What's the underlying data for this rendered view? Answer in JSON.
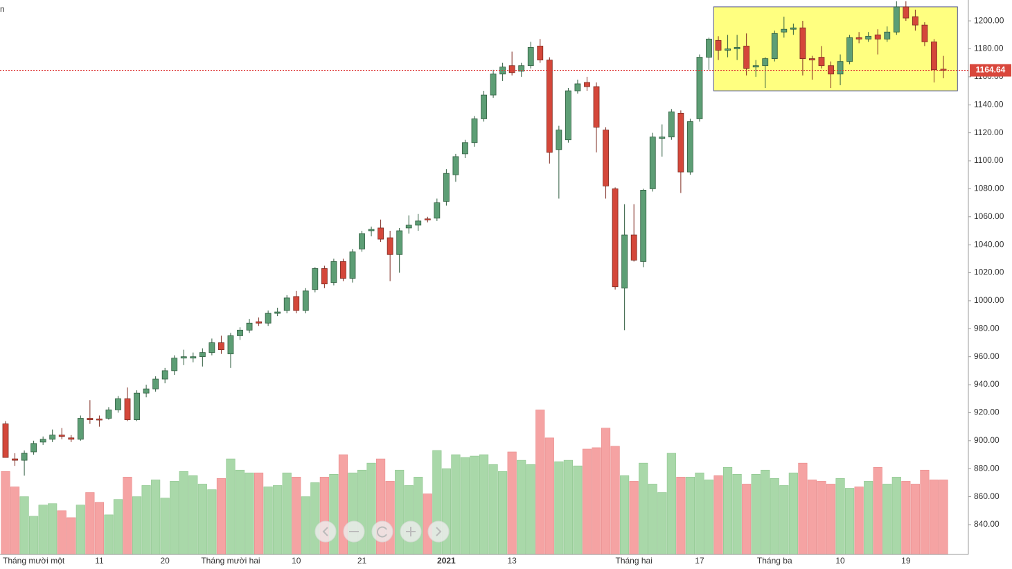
{
  "corner_text": "n",
  "chart_data": {
    "type": "candlestick",
    "categories": [
      null,
      null,
      null,
      "Tháng mười một",
      null,
      null,
      null,
      null,
      null,
      null,
      "11",
      null,
      null,
      null,
      null,
      null,
      null,
      "20",
      null,
      null,
      null,
      null,
      null,
      null,
      "Tháng mười hai",
      null,
      null,
      null,
      null,
      null,
      null,
      "10",
      null,
      null,
      null,
      null,
      null,
      null,
      "21",
      null,
      null,
      null,
      null,
      null,
      null,
      null,
      null,
      "2021",
      null,
      null,
      null,
      null,
      null,
      null,
      "13",
      null,
      null,
      null,
      null,
      null,
      null,
      null,
      null,
      null,
      null,
      null,
      null,
      "Tháng hai",
      null,
      null,
      null,
      null,
      null,
      null,
      "17",
      null,
      null,
      null,
      null,
      null,
      null,
      null,
      "Tháng ba",
      null,
      null,
      null,
      null,
      null,
      null,
      "10",
      null,
      null,
      null,
      null,
      null,
      null,
      "19",
      null,
      null,
      null,
      null
    ],
    "open": [
      912,
      887,
      886,
      892,
      899,
      901,
      904,
      902,
      901,
      916,
      915.5,
      916,
      922,
      930,
      915,
      934,
      937,
      944,
      950,
      959,
      959,
      960,
      963,
      970,
      962,
      975,
      979,
      985,
      984,
      991,
      993,
      1003,
      993,
      1008,
      1023,
      1013,
      1028,
      1016,
      1037,
      1050,
      1052,
      1045,
      1033,
      1052,
      1054,
      1058.5,
      1059,
      1071,
      1090,
      1105,
      1113,
      1130,
      1147,
      1162,
      1168,
      1164,
      1168,
      1182,
      1172,
      1108,
      1115,
      1150,
      1156,
      1153,
      1122,
      1080,
      1009,
      1047,
      1028,
      1080,
      1116,
      1117,
      1134,
      1092,
      1130,
      1174,
      1186,
      1179,
      1180,
      1182,
      1167,
      1168,
      1173,
      1192,
      1194,
      1195,
      1173,
      1174,
      1168,
      1162,
      1171,
      1188,
      1187,
      1190,
      1187,
      1192,
      1210,
      1203,
      1197,
      1185,
      1165.5
    ],
    "high": [
      914,
      891,
      893,
      900,
      903,
      908,
      909,
      904,
      918,
      929,
      918,
      924,
      932,
      938,
      936,
      940,
      946,
      952,
      961,
      965,
      963,
      966,
      973,
      975,
      977,
      981,
      987,
      988,
      993,
      995,
      1004,
      1007,
      1009,
      1024,
      1025,
      1030,
      1030,
      1037,
      1050,
      1053,
      1058,
      1050,
      1052,
      1061,
      1062,
      1060,
      1073,
      1094,
      1105,
      1115,
      1132,
      1150,
      1165,
      1170,
      1178,
      1170,
      1185,
      1187,
      1174,
      1125,
      1152,
      1158,
      1160,
      1156,
      1124,
      1081,
      1069,
      1069,
      1080,
      1120,
      1126,
      1137,
      1136,
      1130,
      1176,
      1188,
      1189,
      1190,
      1190,
      1191,
      1172,
      1174,
      1193,
      1203,
      1198,
      1200,
      1175,
      1182,
      1171,
      1176,
      1190,
      1192,
      1192,
      1194,
      1196,
      1214,
      1214,
      1208,
      1199,
      1187,
      1175
    ],
    "low": [
      888,
      882,
      875,
      890,
      897,
      899,
      901,
      899,
      900,
      912,
      910,
      915,
      920,
      914,
      914,
      931,
      935,
      941,
      947,
      954,
      956,
      953,
      961,
      962,
      952,
      972,
      977,
      982,
      982,
      989,
      991,
      991,
      991,
      1006,
      1009,
      1011,
      1014,
      1013,
      1035,
      1046,
      1042,
      1014,
      1020,
      1048,
      1050,
      1056,
      1057,
      1068,
      1085,
      1102,
      1110,
      1128,
      1145,
      1157,
      1161,
      1160,
      1166,
      1170,
      1098,
      1073,
      1113,
      1148,
      1150,
      1106,
      1073,
      1008,
      979,
      1028,
      1024,
      1078,
      1103,
      1115,
      1077,
      1090,
      1128,
      1165,
      1172,
      1174,
      1172,
      1161,
      1160,
      1152,
      1171,
      1188,
      1190,
      1161,
      1158,
      1166,
      1152,
      1154,
      1169,
      1184,
      1185,
      1176,
      1185,
      1190,
      1200,
      1193,
      1182,
      1156,
      1159
    ],
    "close": [
      888,
      886,
      891,
      898,
      901,
      904,
      903,
      901,
      916,
      915,
      915,
      922,
      930,
      915,
      934,
      937,
      944,
      950,
      959,
      960,
      960,
      963,
      970,
      965,
      975,
      979,
      984,
      984,
      991,
      992,
      1002,
      993,
      1007,
      1023,
      1012,
      1028,
      1016,
      1035,
      1048,
      1051,
      1044,
      1033,
      1050,
      1054,
      1057,
      1058,
      1070,
      1091,
      1103,
      1113,
      1130,
      1147,
      1162,
      1167,
      1163,
      1168,
      1181,
      1172,
      1106,
      1122,
      1150,
      1155,
      1153,
      1124,
      1082,
      1010,
      1047,
      1029,
      1079,
      1117,
      1117,
      1135,
      1092,
      1128,
      1174,
      1187,
      1179,
      1180,
      1181,
      1166,
      1168,
      1173,
      1191,
      1194,
      1195,
      1173,
      1172,
      1168,
      1162,
      1171,
      1188,
      1187,
      1189,
      1187,
      1192,
      1210,
      1202,
      1197,
      1185,
      1165,
      1164.64
    ],
    "volume": [
      878,
      867,
      860,
      846,
      854,
      855,
      850,
      845,
      854,
      863,
      856,
      847,
      858,
      874,
      860,
      868,
      872,
      859,
      871,
      878,
      875,
      869,
      865,
      873,
      887,
      879,
      877,
      877,
      867,
      868,
      877,
      874,
      860,
      870,
      874,
      876,
      890,
      877,
      879,
      884,
      887,
      871,
      879,
      868,
      874,
      862,
      893,
      880,
      890,
      888,
      889,
      890,
      883,
      878,
      892,
      886,
      883,
      922,
      902,
      885,
      886,
      882,
      894,
      895,
      909,
      896,
      875,
      871,
      884,
      869,
      863,
      891,
      874,
      874,
      877,
      872,
      875,
      881,
      876,
      869,
      876,
      879,
      873,
      868,
      877,
      884,
      872,
      871,
      869,
      873,
      866,
      867,
      871,
      881,
      869,
      874,
      871,
      869,
      879,
      872,
      872
    ],
    "up_color": "#5d9e75",
    "down_color": "#d4473a",
    "up_volume_color": "#a9d8a9",
    "down_volume_color": "#f5a3a3",
    "ylim": [
      818.7,
      1214.9
    ],
    "yticks": [
      {
        "value": 840,
        "label": "840.00"
      },
      {
        "value": 860,
        "label": "860.00"
      },
      {
        "value": 880,
        "label": "880.00"
      },
      {
        "value": 900,
        "label": "900.00"
      },
      {
        "value": 920,
        "label": "920.00"
      },
      {
        "value": 940,
        "label": "940.00"
      },
      {
        "value": 960,
        "label": "960.00"
      },
      {
        "value": 980,
        "label": "980.00"
      },
      {
        "value": 1000,
        "label": "1000.00"
      },
      {
        "value": 1020,
        "label": "1020.00"
      },
      {
        "value": 1040,
        "label": "1040.00"
      },
      {
        "value": 1060,
        "label": "1060.00"
      },
      {
        "value": 1080,
        "label": "1080.00"
      },
      {
        "value": 1100,
        "label": "1100.00"
      },
      {
        "value": 1120,
        "label": "1120.00"
      },
      {
        "value": 1140,
        "label": "1140.00"
      },
      {
        "value": 1160,
        "label": "1160.00"
      },
      {
        "value": 1180,
        "label": "1180.00"
      },
      {
        "value": 1200,
        "label": "1200.00"
      }
    ],
    "last_price": 1164.64,
    "highlight": {
      "x_range": [
        76,
        102
      ],
      "ylim": [
        1150,
        1210
      ],
      "color": "#ffff80"
    }
  }
}
